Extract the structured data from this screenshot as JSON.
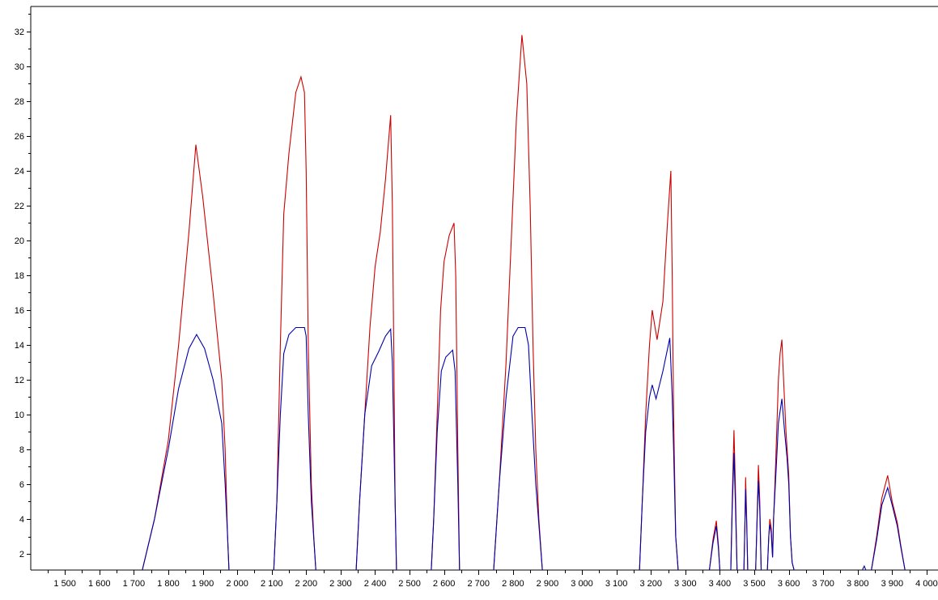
{
  "chart_data": {
    "type": "line",
    "title": "",
    "xlabel": "",
    "ylabel": "",
    "xlim": [
      1401,
      4033
    ],
    "ylim": [
      1.07,
      33.44
    ],
    "grid": false,
    "x_ticks": [
      "1 500",
      "1 600",
      "1 700",
      "1 800",
      "1 900",
      "2 000",
      "2 100",
      "2 200",
      "2 300",
      "2 400",
      "2 500",
      "2 600",
      "2 700",
      "2 800",
      "2 900",
      "3 000",
      "3 100",
      "3 200",
      "3 300",
      "3 400",
      "3 500",
      "3 600",
      "3 700",
      "3 800",
      "3 900",
      "4 000"
    ],
    "x_tick_values": [
      1500,
      1600,
      1700,
      1800,
      1900,
      2000,
      2100,
      2200,
      2300,
      2400,
      2500,
      2600,
      2700,
      2800,
      2900,
      3000,
      3100,
      3200,
      3300,
      3400,
      3500,
      3600,
      3700,
      3800,
      3900,
      4000
    ],
    "y_ticks": [
      "2",
      "4",
      "6",
      "8",
      "10",
      "12",
      "14",
      "16",
      "18",
      "20",
      "22",
      "24",
      "26",
      "28",
      "30",
      "32"
    ],
    "y_tick_values": [
      2,
      4,
      6,
      8,
      10,
      12,
      14,
      16,
      18,
      20,
      22,
      24,
      26,
      28,
      30,
      32
    ],
    "series": [
      {
        "name": "red",
        "color": "#cc0000",
        "segments": [
          [
            [
              1725,
              1.1
            ],
            [
              1760,
              4
            ],
            [
              1800,
              8.5
            ],
            [
              1830,
              14
            ],
            [
              1860,
              20.5
            ],
            [
              1880,
              25.5
            ],
            [
              1900,
              22.5
            ],
            [
              1930,
              17
            ],
            [
              1955,
              12
            ],
            [
              1965,
              8
            ],
            [
              1972,
              3
            ],
            [
              1976,
              1.1
            ]
          ],
          [
            [
              2106,
              1.1
            ],
            [
              2115,
              5
            ],
            [
              2125,
              14
            ],
            [
              2135,
              21.5
            ],
            [
              2150,
              25
            ],
            [
              2170,
              28.5
            ],
            [
              2185,
              29.4
            ],
            [
              2195,
              28.5
            ],
            [
              2200,
              24
            ],
            [
              2206,
              14
            ],
            [
              2215,
              6
            ],
            [
              2222,
              3
            ],
            [
              2228,
              1.1
            ]
          ],
          [
            [
              2345,
              1.1
            ],
            [
              2355,
              5
            ],
            [
              2370,
              10
            ],
            [
              2385,
              15
            ],
            [
              2400,
              18.5
            ],
            [
              2415,
              20.5
            ],
            [
              2430,
              23.5
            ],
            [
              2445,
              27.2
            ],
            [
              2450,
              22
            ],
            [
              2455,
              12
            ],
            [
              2458,
              5
            ],
            [
              2462,
              1.1
            ]
          ],
          [
            [
              2563,
              1.1
            ],
            [
              2570,
              4
            ],
            [
              2580,
              10
            ],
            [
              2590,
              16
            ],
            [
              2600,
              18.8
            ],
            [
              2615,
              20.3
            ],
            [
              2629,
              21
            ],
            [
              2634,
              18
            ],
            [
              2640,
              8
            ],
            [
              2645,
              1.1
            ]
          ],
          [
            [
              2744,
              1.1
            ],
            [
              2760,
              6
            ],
            [
              2780,
              13
            ],
            [
              2795,
              20
            ],
            [
              2810,
              27
            ],
            [
              2826,
              31.8
            ],
            [
              2840,
              29
            ],
            [
              2850,
              22
            ],
            [
              2858,
              14
            ],
            [
              2866,
              8
            ],
            [
              2875,
              4
            ],
            [
              2885,
              1.1
            ]
          ],
          [
            [
              3167,
              1.1
            ],
            [
              3175,
              5
            ],
            [
              3185,
              10
            ],
            [
              3196,
              14
            ],
            [
              3204,
              16
            ],
            [
              3218,
              14.3
            ],
            [
              3235,
              16.5
            ],
            [
              3248,
              21
            ],
            [
              3258,
              24
            ],
            [
              3262,
              18
            ],
            [
              3266,
              10
            ],
            [
              3272,
              3
            ],
            [
              3279,
              1.1
            ]
          ],
          [
            [
              3370,
              1.1
            ],
            [
              3380,
              2.8
            ],
            [
              3390,
              3.9
            ],
            [
              3396,
              2.5
            ],
            [
              3400,
              1.1
            ]
          ],
          [
            [
              3432,
              1.1
            ],
            [
              3436,
              5
            ],
            [
              3441,
              9.1
            ],
            [
              3445,
              6
            ],
            [
              3450,
              1.1
            ]
          ],
          [
            [
              3470,
              1.1
            ],
            [
              3473,
              4
            ],
            [
              3475,
              6.4
            ],
            [
              3478,
              4
            ],
            [
              3481,
              1.1
            ]
          ],
          [
            [
              3504,
              1.1
            ],
            [
              3508,
              4
            ],
            [
              3512,
              7.1
            ],
            [
              3516,
              5
            ],
            [
              3520,
              1.1
            ]
          ],
          [
            [
              3538,
              1.1
            ],
            [
              3542,
              3
            ],
            [
              3545,
              4.0
            ],
            [
              3549,
              3.5
            ],
            [
              3553,
              1.8
            ],
            [
              3556,
              4
            ]
          ],
          [
            [
              3556,
              4
            ],
            [
              3560,
              6
            ],
            [
              3565,
              9
            ],
            [
              3570,
              12
            ],
            [
              3575,
              13.5
            ],
            [
              3580,
              14.3
            ],
            [
              3585,
              12
            ],
            [
              3592,
              9
            ],
            [
              3600,
              6.5
            ],
            [
              3605,
              3
            ],
            [
              3610,
              1.5
            ],
            [
              3615,
              1.1
            ]
          ],
          [
            [
              3840,
              1.1
            ],
            [
              3855,
              3
            ],
            [
              3870,
              5.2
            ],
            [
              3887,
              6.5
            ],
            [
              3900,
              5
            ],
            [
              3915,
              3.8
            ],
            [
              3925,
              2.5
            ],
            [
              3937,
              1.1
            ]
          ]
        ]
      },
      {
        "name": "blue",
        "color": "#0000aa",
        "segments": [
          [
            [
              1725,
              1.1
            ],
            [
              1760,
              4
            ],
            [
              1800,
              8
            ],
            [
              1830,
              11.5
            ],
            [
              1860,
              13.8
            ],
            [
              1882,
              14.6
            ],
            [
              1905,
              13.8
            ],
            [
              1930,
              12
            ],
            [
              1955,
              9.5
            ],
            [
              1965,
              6
            ],
            [
              1972,
              3
            ],
            [
              1976,
              1.1
            ]
          ],
          [
            [
              2106,
              1.1
            ],
            [
              2115,
              5
            ],
            [
              2125,
              10
            ],
            [
              2135,
              13.5
            ],
            [
              2150,
              14.6
            ],
            [
              2170,
              15
            ],
            [
              2195,
              15
            ],
            [
              2200,
              14.5
            ],
            [
              2206,
              10
            ],
            [
              2215,
              5
            ],
            [
              2228,
              1.1
            ]
          ],
          [
            [
              2345,
              1.1
            ],
            [
              2355,
              5
            ],
            [
              2370,
              10
            ],
            [
              2390,
              12.8
            ],
            [
              2410,
              13.6
            ],
            [
              2430,
              14.5
            ],
            [
              2445,
              14.9
            ],
            [
              2450,
              13
            ],
            [
              2455,
              8
            ],
            [
              2462,
              1.1
            ]
          ],
          [
            [
              2563,
              1.1
            ],
            [
              2570,
              4
            ],
            [
              2580,
              9
            ],
            [
              2592,
              12.5
            ],
            [
              2605,
              13.3
            ],
            [
              2625,
              13.7
            ],
            [
              2632,
              12.5
            ],
            [
              2640,
              6
            ],
            [
              2645,
              1.1
            ]
          ],
          [
            [
              2744,
              1.1
            ],
            [
              2760,
              6
            ],
            [
              2780,
              11
            ],
            [
              2800,
              14.5
            ],
            [
              2815,
              15
            ],
            [
              2835,
              15
            ],
            [
              2845,
              14
            ],
            [
              2855,
              10
            ],
            [
              2866,
              6
            ],
            [
              2885,
              1.1
            ]
          ],
          [
            [
              3167,
              1.1
            ],
            [
              3175,
              5
            ],
            [
              3185,
              9
            ],
            [
              3196,
              11
            ],
            [
              3204,
              11.7
            ],
            [
              3215,
              10.9
            ],
            [
              3235,
              12.5
            ],
            [
              3255,
              14.4
            ],
            [
              3262,
              11
            ],
            [
              3266,
              8
            ],
            [
              3272,
              3
            ],
            [
              3279,
              1.1
            ]
          ],
          [
            [
              3370,
              1.1
            ],
            [
              3380,
              2.6
            ],
            [
              3390,
              3.6
            ],
            [
              3396,
              2.3
            ],
            [
              3400,
              1.1
            ]
          ],
          [
            [
              3432,
              1.1
            ],
            [
              3436,
              4.5
            ],
            [
              3441,
              7.8
            ],
            [
              3445,
              5
            ],
            [
              3450,
              1.1
            ]
          ],
          [
            [
              3470,
              1.1
            ],
            [
              3473,
              3.8
            ],
            [
              3475,
              5.7
            ],
            [
              3478,
              3.8
            ],
            [
              3481,
              1.1
            ]
          ],
          [
            [
              3504,
              1.1
            ],
            [
              3508,
              3.8
            ],
            [
              3512,
              6.2
            ],
            [
              3516,
              4.5
            ],
            [
              3520,
              1.1
            ]
          ],
          [
            [
              3538,
              1.1
            ],
            [
              3542,
              3
            ],
            [
              3545,
              3.7
            ],
            [
              3549,
              3.2
            ],
            [
              3553,
              1.8
            ],
            [
              3556,
              4
            ]
          ],
          [
            [
              3556,
              4
            ],
            [
              3560,
              5.5
            ],
            [
              3565,
              7.5
            ],
            [
              3570,
              9.5
            ],
            [
              3580,
              10.9
            ],
            [
              3588,
              9
            ],
            [
              3595,
              7.5
            ],
            [
              3600,
              6
            ],
            [
              3605,
              3
            ],
            [
              3610,
              1.5
            ],
            [
              3615,
              1.1
            ]
          ],
          [
            [
              3814,
              1.1
            ],
            [
              3819,
              1.3
            ],
            [
              3823,
              1.1
            ]
          ],
          [
            [
              3840,
              1.1
            ],
            [
              3855,
              2.8
            ],
            [
              3870,
              4.8
            ],
            [
              3887,
              5.8
            ],
            [
              3900,
              4.8
            ],
            [
              3915,
              3.6
            ],
            [
              3925,
              2.4
            ],
            [
              3937,
              1.1
            ]
          ]
        ]
      }
    ]
  }
}
